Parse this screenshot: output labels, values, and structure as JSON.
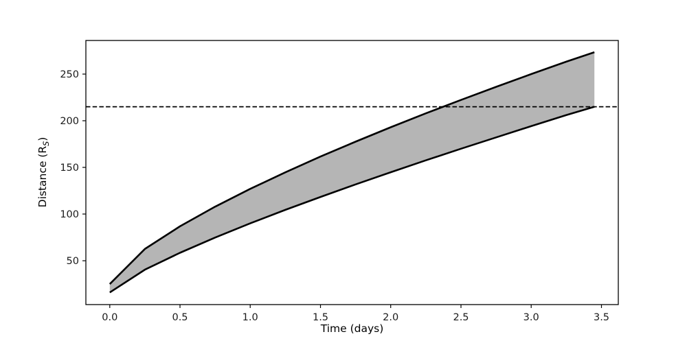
{
  "figure": {
    "background": "#ffffff"
  },
  "chart_data": {
    "type": "area",
    "title": "",
    "xlabel": "Time (days)",
    "ylabel_parts": {
      "prefix": "Distance (R",
      "subscript": "S",
      "suffix": ")"
    },
    "x": [
      0,
      0.25,
      0.5,
      0.75,
      1.0,
      1.25,
      1.5,
      1.75,
      2.0,
      2.25,
      2.5,
      2.75,
      3.0,
      3.25,
      3.45
    ],
    "series": [
      {
        "name": "upper_boundary",
        "values": [
          25,
          62.6,
          86.9,
          107.9,
          127.0,
          144.7,
          161.6,
          177.6,
          193.0,
          207.9,
          222.3,
          236.3,
          250.0,
          263.3,
          273.4
        ]
      },
      {
        "name": "lower_boundary",
        "values": [
          16,
          40.4,
          58.5,
          74.8,
          90.0,
          104.5,
          118.3,
          131.8,
          144.8,
          157.6,
          170.0,
          182.1,
          194.2,
          206.0,
          215.0
        ]
      }
    ],
    "band_fill_between_series": true,
    "reference_line": {
      "orientation": "horizontal",
      "value": 215,
      "line_style": "dashed",
      "color": "#000000"
    },
    "xlim": [
      -0.17,
      3.62
    ],
    "ylim": [
      3,
      286
    ],
    "x_ticks": {
      "values": [
        0,
        0.5,
        1.0,
        1.5,
        2.0,
        2.5,
        3.0,
        3.5
      ],
      "labels": [
        "0.0",
        "0.5",
        "1.0",
        "1.5",
        "2.0",
        "2.5",
        "3.0",
        "3.5"
      ]
    },
    "y_ticks": {
      "values": [
        50,
        100,
        150,
        200,
        250
      ],
      "labels": [
        "50",
        "100",
        "150",
        "200",
        "250"
      ]
    },
    "grid": false,
    "legend": null,
    "colors": {
      "curve": "#000000",
      "band_fill": "#b5b5b5",
      "axes": "#000000",
      "tick_text": "#1a1a1a",
      "background": "#ffffff"
    }
  }
}
